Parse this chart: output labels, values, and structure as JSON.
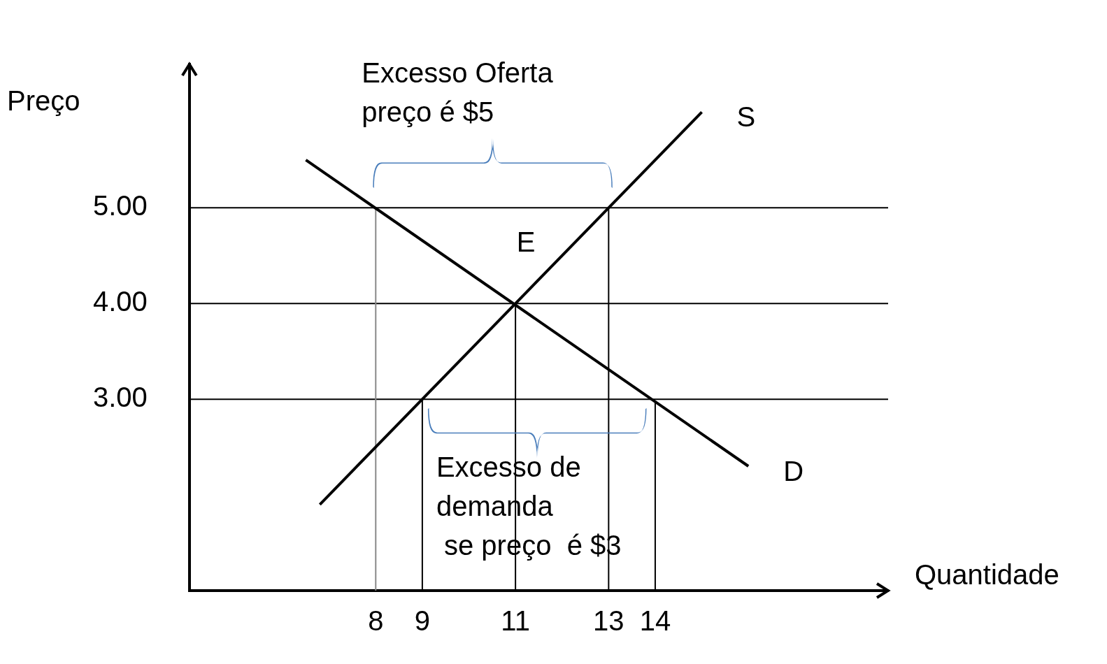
{
  "chart_data": {
    "type": "line",
    "xlabel": "Quantidade",
    "ylabel": "Preço",
    "xlim": [
      4,
      19
    ],
    "ylim": [
      1,
      6.5
    ],
    "xticks": [
      8,
      9,
      11,
      13,
      14
    ],
    "yticks": [
      {
        "value": 3,
        "label": "3.00"
      },
      {
        "value": 4,
        "label": "4.00"
      },
      {
        "value": 5,
        "label": "5.00"
      }
    ],
    "series": [
      {
        "name": "S",
        "color": "#000000",
        "x": [
          6.8,
          15
        ],
        "values": [
          1.9,
          6
        ]
      },
      {
        "name": "D",
        "color": "#000000",
        "x": [
          6.5,
          16
        ],
        "values": [
          5.5,
          2.3
        ]
      }
    ],
    "ref_lines": [
      {
        "axis": "y",
        "value": 5,
        "color": "#000000"
      },
      {
        "axis": "y",
        "value": 4,
        "color": "#000000"
      },
      {
        "axis": "y",
        "value": 3,
        "color": "#000000"
      },
      {
        "axis": "x",
        "value": 8,
        "color": "#888888"
      },
      {
        "axis": "x",
        "value": 9,
        "color": "#000000"
      },
      {
        "axis": "x",
        "value": 11,
        "color": "#000000"
      },
      {
        "axis": "x",
        "value": 13,
        "color": "#000000"
      },
      {
        "axis": "x",
        "value": 14,
        "color": "#000000"
      }
    ],
    "annotations": [
      "Excesso Oferta\npreço é $5",
      "Excesso de\ndemanda\n se preço  é $3",
      {
        "text": "E",
        "x": 11,
        "y": 4
      }
    ],
    "grid": false,
    "legend": false
  }
}
